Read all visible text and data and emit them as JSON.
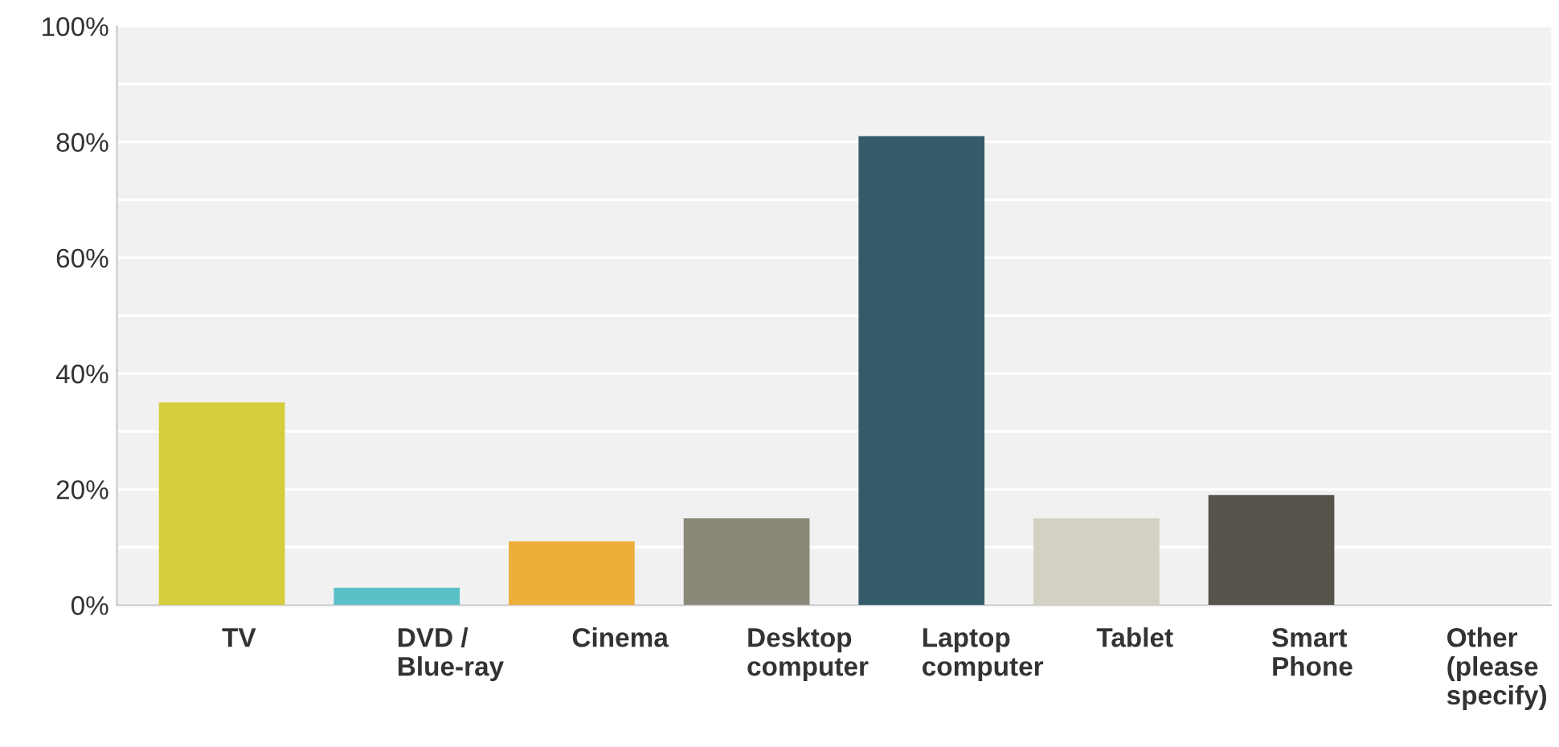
{
  "chart_data": {
    "type": "bar",
    "categories": [
      "TV",
      "DVD /\nBlue-ray",
      "Cinema",
      "Desktop\ncomputer",
      "Laptop\ncomputer",
      "Tablet",
      "Smart\nPhone",
      "Other\n(please\nspecify)"
    ],
    "values": [
      35,
      3,
      11,
      15,
      81,
      15,
      19,
      0
    ],
    "colors": [
      "#d4cd3c",
      "#5bbfc8",
      "#eeae3a",
      "#8a8878",
      "#355b6b",
      "#d3d1c4",
      "#56544a",
      "#888888"
    ],
    "ylim": [
      0,
      100
    ],
    "yticks": [
      {
        "value": 0,
        "label": "0%"
      },
      {
        "value": 10,
        "label": null
      },
      {
        "value": 20,
        "label": "20%"
      },
      {
        "value": 30,
        "label": null
      },
      {
        "value": 40,
        "label": "40%"
      },
      {
        "value": 50,
        "label": null
      },
      {
        "value": 60,
        "label": "60%"
      },
      {
        "value": 70,
        "label": null
      },
      {
        "value": 80,
        "label": "80%"
      },
      {
        "value": 90,
        "label": null
      },
      {
        "value": 100,
        "label": "100%"
      }
    ],
    "grid": "y"
  }
}
